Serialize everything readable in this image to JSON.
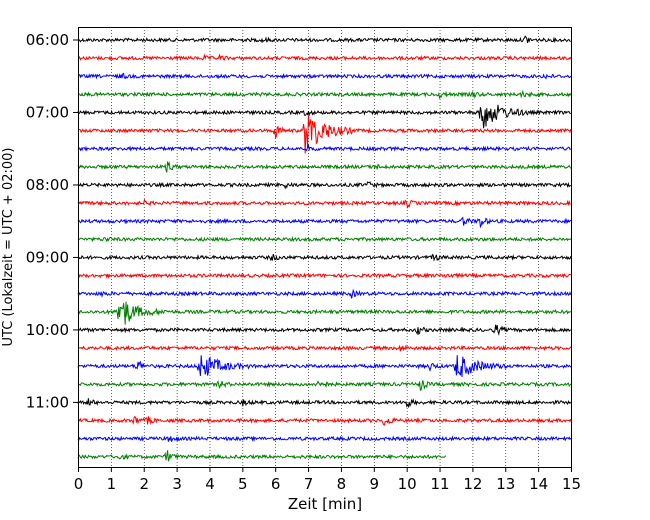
{
  "chart_data": {
    "type": "line",
    "title": "",
    "xlabel": "Zeit  [min]",
    "ylabel": "UTC (Lokalzeit = UTC + 02:00)",
    "xlim": [
      0,
      15
    ],
    "x_ticks": [
      "0",
      "1",
      "2",
      "3",
      "4",
      "5",
      "6",
      "7",
      "8",
      "9",
      "10",
      "11",
      "12",
      "13",
      "14",
      "15"
    ],
    "y_ticks": [
      "06:00",
      "07:00",
      "08:00",
      "09:00",
      "10:00",
      "11:00"
    ],
    "grid": "vertical dotted",
    "row_minutes": 15,
    "start_time": "06:00",
    "colors": [
      "#000000",
      "#ff0000",
      "#0000ff",
      "#008000"
    ],
    "series": [
      {
        "start": "06:00",
        "color": "black",
        "end_min": 15,
        "events": [
          {
            "t": 13.6,
            "amp": 4
          },
          {
            "t": 5.6,
            "amp": 2
          }
        ]
      },
      {
        "start": "06:15",
        "color": "red",
        "end_min": 15,
        "events": [
          {
            "t": 3.8,
            "amp": 2
          },
          {
            "t": 4.3,
            "amp": 2
          }
        ]
      },
      {
        "start": "06:30",
        "color": "blue",
        "end_min": 15,
        "events": [
          {
            "t": 1.3,
            "amp": 3
          },
          {
            "t": 14.2,
            "amp": 2
          }
        ]
      },
      {
        "start": "06:45",
        "color": "green",
        "end_min": 15,
        "events": [
          {
            "t": 11.0,
            "amp": 3
          },
          {
            "t": 12.0,
            "amp": 3
          },
          {
            "t": 13.5,
            "amp": 3
          }
        ]
      },
      {
        "start": "07:00",
        "color": "black",
        "end_min": 15,
        "events": [
          {
            "t": 12.2,
            "amp": 20
          },
          {
            "t": 6.9,
            "amp": 3
          }
        ]
      },
      {
        "start": "07:15",
        "color": "red",
        "end_min": 15,
        "events": [
          {
            "t": 6.9,
            "amp": 24
          },
          {
            "t": 6.0,
            "amp": 8
          }
        ]
      },
      {
        "start": "07:30",
        "color": "blue",
        "end_min": 15,
        "events": [
          {
            "t": 7.0,
            "amp": 2
          }
        ]
      },
      {
        "start": "07:45",
        "color": "green",
        "end_min": 15,
        "events": [
          {
            "t": 2.7,
            "amp": 6
          },
          {
            "t": 9.0,
            "amp": 3
          }
        ]
      },
      {
        "start": "08:00",
        "color": "black",
        "end_min": 15,
        "events": [
          {
            "t": 8.8,
            "amp": 3
          },
          {
            "t": 6.3,
            "amp": 2
          }
        ]
      },
      {
        "start": "08:15",
        "color": "red",
        "end_min": 15,
        "events": [
          {
            "t": 10.0,
            "amp": 4
          },
          {
            "t": 2.0,
            "amp": 2
          }
        ]
      },
      {
        "start": "08:30",
        "color": "blue",
        "end_min": 15,
        "events": [
          {
            "t": 12.2,
            "amp": 8
          },
          {
            "t": 11.7,
            "amp": 5
          }
        ]
      },
      {
        "start": "08:45",
        "color": "green",
        "end_min": 15,
        "events": [
          {
            "t": 0.8,
            "amp": 2
          }
        ]
      },
      {
        "start": "09:00",
        "color": "black",
        "end_min": 15,
        "events": [
          {
            "t": 10.8,
            "amp": 4
          },
          {
            "t": 5.9,
            "amp": 3
          }
        ]
      },
      {
        "start": "09:15",
        "color": "red",
        "end_min": 15,
        "events": [
          {
            "t": 11.2,
            "amp": 2
          }
        ]
      },
      {
        "start": "09:30",
        "color": "blue",
        "end_min": 15,
        "events": [
          {
            "t": 8.3,
            "amp": 4
          },
          {
            "t": 0.7,
            "amp": 2
          }
        ]
      },
      {
        "start": "09:45",
        "color": "green",
        "end_min": 15,
        "events": [
          {
            "t": 1.2,
            "amp": 14
          },
          {
            "t": 1.4,
            "amp": 6
          }
        ]
      },
      {
        "start": "10:00",
        "color": "black",
        "end_min": 15,
        "events": [
          {
            "t": 12.7,
            "amp": 6
          },
          {
            "t": 10.3,
            "amp": 5
          }
        ]
      },
      {
        "start": "10:15",
        "color": "red",
        "end_min": 15,
        "events": [
          {
            "t": 9.8,
            "amp": 3
          }
        ]
      },
      {
        "start": "10:30",
        "color": "blue",
        "end_min": 15,
        "events": [
          {
            "t": 3.7,
            "amp": 14
          },
          {
            "t": 11.5,
            "amp": 14
          },
          {
            "t": 1.8,
            "amp": 7
          },
          {
            "t": 10.7,
            "amp": 4
          }
        ]
      },
      {
        "start": "10:45",
        "color": "green",
        "end_min": 15,
        "events": [
          {
            "t": 7.3,
            "amp": 8
          },
          {
            "t": 10.4,
            "amp": 7
          },
          {
            "t": 4.3,
            "amp": 4
          }
        ]
      },
      {
        "start": "11:00",
        "color": "black",
        "end_min": 15,
        "events": [
          {
            "t": 0.3,
            "amp": 4
          },
          {
            "t": 10.0,
            "amp": 5
          },
          {
            "t": 5.0,
            "amp": 3
          }
        ]
      },
      {
        "start": "11:15",
        "color": "red",
        "end_min": 15,
        "events": [
          {
            "t": 9.3,
            "amp": 9
          },
          {
            "t": 1.7,
            "amp": 5
          },
          {
            "t": 2.1,
            "amp": 4
          }
        ]
      },
      {
        "start": "11:30",
        "color": "blue",
        "end_min": 15,
        "events": [
          {
            "t": 2.8,
            "amp": 5
          },
          {
            "t": 15.0,
            "amp": 2
          }
        ]
      },
      {
        "start": "11:45",
        "color": "green",
        "end_min": 11.2,
        "events": [
          {
            "t": 2.7,
            "amp": 7
          },
          {
            "t": 1.2,
            "amp": 3
          }
        ]
      }
    ]
  }
}
